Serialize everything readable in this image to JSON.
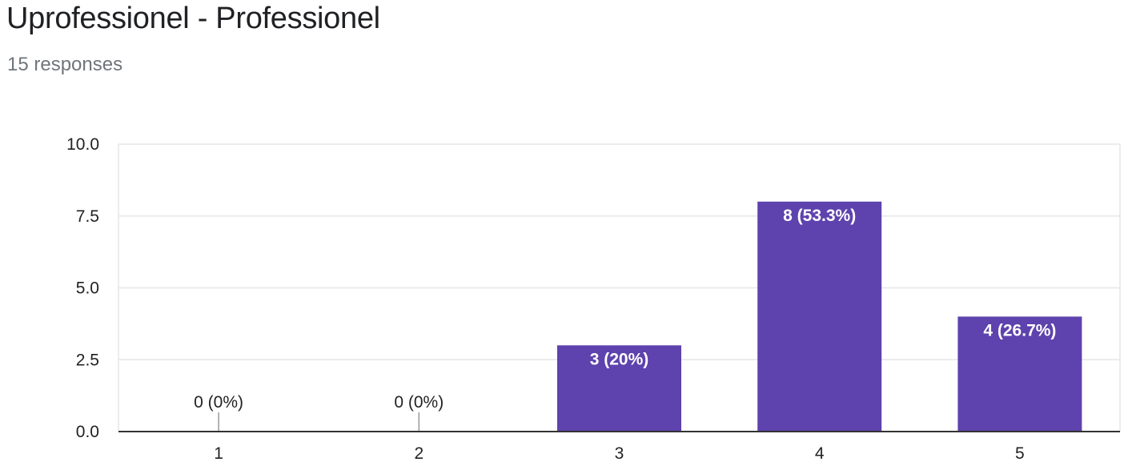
{
  "header": {
    "title": "Uprofessionel - Professionel",
    "subtitle": "15 responses"
  },
  "chart_data": {
    "type": "bar",
    "title": "Uprofessionel - Professionel",
    "xlabel": "",
    "ylabel": "",
    "categories": [
      "1",
      "2",
      "3",
      "4",
      "5"
    ],
    "values": [
      0,
      0,
      3,
      8,
      4
    ],
    "data_labels": [
      "0 (0%)",
      "0 (0%)",
      "3 (20%)",
      "8 (53.3%)",
      "4 (26.7%)"
    ],
    "ylim": [
      0,
      10
    ],
    "yticks": [
      "0.0",
      "2.5",
      "5.0",
      "7.5",
      "10.0"
    ],
    "ytick_values": [
      0,
      2.5,
      5,
      7.5,
      10
    ],
    "grid": true,
    "legend": "none",
    "colors": {
      "bar": "#5e42ad",
      "grid": "#e6e6e6",
      "axis": "#333333",
      "zero_marker": "#999999"
    }
  }
}
